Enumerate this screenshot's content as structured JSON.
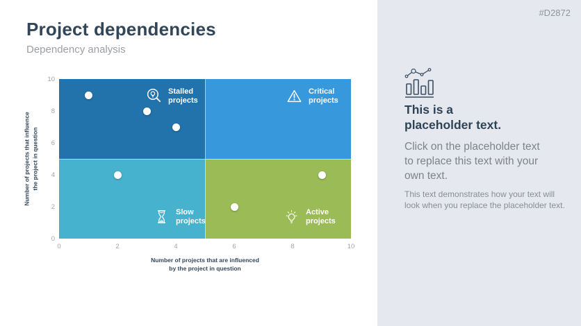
{
  "slide": {
    "id": "#D2872",
    "title": "Project dependencies",
    "subtitle": "Dependency analysis"
  },
  "colors": {
    "title_text": "#32465a",
    "subtitle_text": "#9b9ea3",
    "panel_bg": "#e5e8ee",
    "quadrant_label_text": "#ffffff",
    "dot": "#ffffff",
    "axis_title_text": "#33475b",
    "tick_text": "#a0a4a9"
  },
  "chart_data": {
    "type": "scatter",
    "xlabel_lines": [
      "Number of projects that are influenced",
      "by the project in question"
    ],
    "ylabel_lines": [
      "Number of projects that influence",
      "the project in question"
    ],
    "xlim": [
      0,
      10
    ],
    "ylim": [
      0,
      10
    ],
    "x_ticks": [
      0,
      2,
      4,
      6,
      8,
      10
    ],
    "y_ticks": [
      0,
      2,
      4,
      6,
      8,
      10
    ],
    "grid": false,
    "points": [
      {
        "x": 1,
        "y": 9
      },
      {
        "x": 3,
        "y": 8
      },
      {
        "x": 4,
        "y": 7
      },
      {
        "x": 2,
        "y": 4
      },
      {
        "x": 6,
        "y": 2
      },
      {
        "x": 9,
        "y": 4
      }
    ],
    "quadrants": [
      {
        "id": "stalled",
        "label_line1": "Stalled",
        "label_line2": "projects",
        "icon": "magnifier-bulb-icon",
        "color": "#2273ab",
        "x_range": [
          0,
          5
        ],
        "y_range": [
          5,
          10
        ]
      },
      {
        "id": "critical",
        "label_line1": "Critical",
        "label_line2": "projects",
        "icon": "warning-triangle-icon",
        "color": "#3798dc",
        "x_range": [
          5,
          10
        ],
        "y_range": [
          5,
          10
        ]
      },
      {
        "id": "slow",
        "label_line1": "Slow",
        "label_line2": "projects",
        "icon": "hourglass-icon",
        "color": "#47b2cd",
        "x_range": [
          0,
          5
        ],
        "y_range": [
          0,
          5
        ]
      },
      {
        "id": "active",
        "label_line1": "Active",
        "label_line2": "projects",
        "icon": "lightbulb-icon",
        "color": "#9bbb57",
        "x_range": [
          5,
          10
        ],
        "y_range": [
          0,
          5
        ]
      }
    ]
  },
  "placeholder": {
    "icon": "combo-chart-icon",
    "heading_lines": [
      "This is a",
      "placeholder text."
    ],
    "body_lines": [
      "Click on the placeholder text",
      "to replace this text with your",
      "own text."
    ],
    "note_lines": [
      "This text demonstrates how your text will",
      "look when you replace the placeholder text."
    ]
  }
}
